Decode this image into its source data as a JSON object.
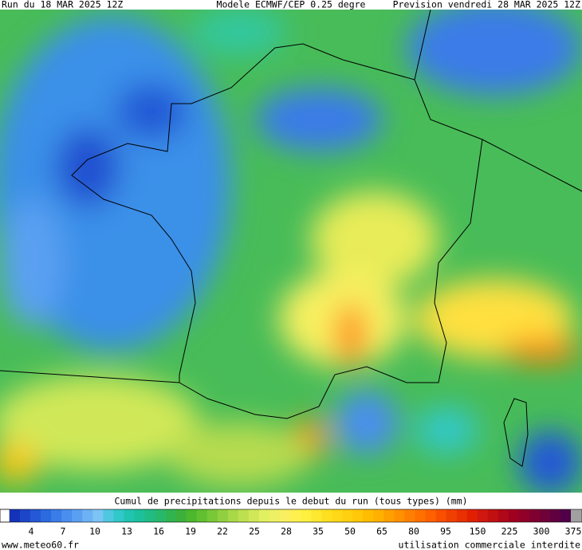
{
  "header": {
    "run": "Run du 18 MAR 2025 12Z",
    "model": "Modele ECMWF/CEP 0.25 degre",
    "forecast": "Prevision vendredi 28 MAR 2025 12Z"
  },
  "colorbar": {
    "title": "Cumul de precipitations depuis le debut du run (tous types) (mm)",
    "labels": [
      4,
      7,
      10,
      13,
      16,
      19,
      22,
      25,
      28,
      35,
      50,
      65,
      80,
      95,
      150,
      225,
      300,
      375
    ],
    "colors": [
      "#1433b8",
      "#1c46c8",
      "#2458d6",
      "#2c6ae0",
      "#3a7ce8",
      "#4a8eee",
      "#5aa0f2",
      "#6cb2f4",
      "#7cc4f4",
      "#4ec8e0",
      "#30c8c8",
      "#20c4b0",
      "#1cc09a",
      "#20bc84",
      "#28b86c",
      "#30b450",
      "#3cb03c",
      "#4cb82c",
      "#60c030",
      "#78c838",
      "#90d040",
      "#a8d848",
      "#bce050",
      "#d0e858",
      "#e0f060",
      "#eef064",
      "#f8f060",
      "#fff050",
      "#fff040",
      "#ffe830",
      "#ffe020",
      "#ffd818",
      "#ffd010",
      "#ffc808",
      "#ffbc00",
      "#ffb000",
      "#ffa000",
      "#ff9000",
      "#ff8000",
      "#ff7000",
      "#ff6000",
      "#f85000",
      "#f04000",
      "#e83000",
      "#e02000",
      "#d01810",
      "#c01010",
      "#b00818",
      "#a00020",
      "#900028",
      "#800030",
      "#700038",
      "#600040",
      "#500048"
    ]
  },
  "footer": {
    "site": "www.meteo60.fr",
    "notice": "utilisation commerciale interdite"
  }
}
